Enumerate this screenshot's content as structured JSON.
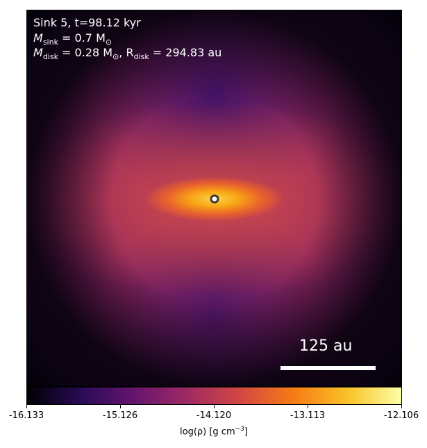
{
  "panel": {
    "info_line1": "Sink 5, t=98.12 kyr",
    "sink_mass_label": "M",
    "sink_mass_sub": "sink",
    "sink_mass_value": " = 0.7 M",
    "sun_sub": "⊙",
    "disk_mass_label": "M",
    "disk_mass_sub": "disk",
    "disk_mass_value": " = 0.28 M",
    "disk_radius_sep": ", R",
    "disk_radius_sub": "disk",
    "disk_radius_value": " = 294.83 au",
    "scale_bar_label": "125 au"
  },
  "colorbar": {
    "tick_labels": [
      "-16.133",
      "-15.126",
      "-14.120",
      "-13.113",
      "-12.106"
    ],
    "label_prefix": "log(ρ) [g cm",
    "label_exp": "−3",
    "label_suffix": "]",
    "colormap": "inferno",
    "colors": [
      "#000004",
      "#280b54",
      "#65156e",
      "#9f2a63",
      "#d44842",
      "#f57d15",
      "#fac228",
      "#fcffa4"
    ]
  },
  "sink_marker": {
    "fill": "#ffffff",
    "stroke": "#3b3b33"
  }
}
